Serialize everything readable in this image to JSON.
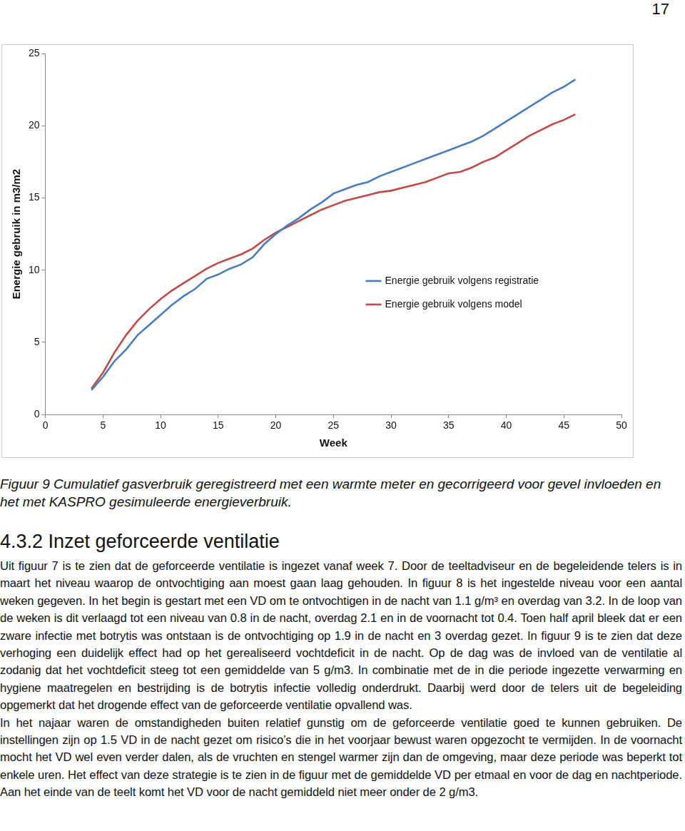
{
  "page_number": "17",
  "chart_data": {
    "type": "line",
    "xlabel": "Week",
    "ylabel": "Energie gebruik in m3/m2",
    "xlim": [
      0,
      50
    ],
    "xticks": [
      0,
      5,
      10,
      15,
      20,
      25,
      30,
      35,
      40,
      45,
      50
    ],
    "ylim": [
      0,
      25
    ],
    "yticks": [
      0,
      5,
      10,
      15,
      20,
      25
    ],
    "grid": false,
    "legend": "right",
    "marker": "none",
    "x": [
      4,
      5,
      6,
      7,
      8,
      9,
      10,
      11,
      12,
      13,
      14,
      15,
      16,
      17,
      18,
      19,
      20,
      21,
      22,
      23,
      24,
      25,
      26,
      27,
      28,
      29,
      30,
      31,
      32,
      33,
      34,
      35,
      36,
      37,
      38,
      39,
      40,
      41,
      42,
      43,
      44,
      45,
      46
    ],
    "series": [
      {
        "name": "Energie gebruik volgens registratie",
        "color": "#4a7ebb",
        "values": [
          1.7,
          2.6,
          3.7,
          4.5,
          5.5,
          6.2,
          6.9,
          7.6,
          8.2,
          8.7,
          9.4,
          9.7,
          10.1,
          10.4,
          10.9,
          11.8,
          12.5,
          13.1,
          13.6,
          14.2,
          14.7,
          15.3,
          15.6,
          15.9,
          16.1,
          16.5,
          16.8,
          17.1,
          17.4,
          17.7,
          18.0,
          18.3,
          18.6,
          18.9,
          19.3,
          19.8,
          20.3,
          20.8,
          21.3,
          21.8,
          22.3,
          22.7,
          23.2
        ]
      },
      {
        "name": "Energie gebruik volgens model",
        "color": "#be4b48",
        "values": [
          1.8,
          2.9,
          4.3,
          5.5,
          6.5,
          7.3,
          8.0,
          8.6,
          9.1,
          9.6,
          10.1,
          10.5,
          10.8,
          11.1,
          11.5,
          12.1,
          12.6,
          13.0,
          13.4,
          13.8,
          14.2,
          14.5,
          14.8,
          15.0,
          15.2,
          15.4,
          15.5,
          15.7,
          15.9,
          16.1,
          16.4,
          16.7,
          16.8,
          17.1,
          17.5,
          17.8,
          18.3,
          18.8,
          19.3,
          19.7,
          20.1,
          20.4,
          20.8
        ]
      }
    ]
  },
  "caption": "Figuur 9 Cumulatief gasverbruik geregistreerd met een warmte meter en gecorrigeerd voor gevel invloeden en het met KASPRO gesimuleerde energieverbruik.",
  "section": {
    "heading": "4.3.2 Inzet geforceerde ventilatie",
    "paragraphs": [
      "Uit figuur 7 is te zien dat de geforceerde ventilatie is ingezet vanaf week 7. Door de teeltadviseur en de begeleidende telers is in maart het niveau waarop de ontvochtiging aan moest gaan laag gehouden. In figuur 8 is het ingestelde niveau voor een aantal weken gegeven. In het begin is gestart met een VD om te ontvochtigen in de nacht van 1.1 g/m³ en overdag van 3.2. In de loop van de weken is dit verlaagd tot een niveau van 0.8 in de nacht, overdag 2.1 en in de voornacht tot 0.4. Toen half april bleek dat er een zware infectie met botrytis was ontstaan is de ontvochtiging op 1.9 in de nacht en 3 overdag gezet. In figuur 9 is te zien dat deze verhoging een duidelijk effect had op het gerealiseerd vochtdeficit in de nacht. Op de dag was de invloed van de ventilatie al zodanig dat het vochtdeficit steeg tot een gemiddelde van 5 g/m3. In combinatie met de in die periode ingezette verwarming en hygiene maatregelen en bestrijding is de botrytis infectie volledig onderdrukt. Daarbij werd door de telers uit de begeleiding opgemerkt dat het drogende effect van de geforceerde ventilatie opvallend was.",
      "In het najaar waren de omstandigheden buiten relatief gunstig om de geforceerde ventilatie goed te kunnen gebruiken. De instellingen zijn op 1.5 VD in de nacht gezet om risico’s die in het voorjaar bewust waren opgezocht te vermijden. In de voornacht mocht het VD wel even verder dalen, als de vruchten en stengel warmer zijn dan de omgeving, maar deze periode was beperkt tot enkele uren. Het effect van deze strategie is te zien in de figuur met de gemiddelde VD per etmaal en voor de dag en nachtperiode. Aan het einde van de teelt komt het VD voor de nacht gemiddeld niet meer onder de 2 g/m3."
    ]
  }
}
